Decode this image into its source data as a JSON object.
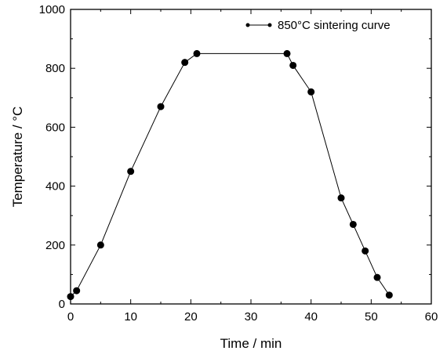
{
  "chart_data": {
    "type": "line",
    "xlabel": "Time / min",
    "ylabel": "Temperature / °C",
    "xlim": [
      0,
      60
    ],
    "ylim": [
      0,
      1000
    ],
    "xticks": [
      "0",
      "10",
      "20",
      "30",
      "40",
      "50",
      "60"
    ],
    "yticks": [
      "0",
      "200",
      "400",
      "600",
      "800",
      "1000"
    ],
    "grid": false,
    "legend_position": "top-right",
    "series": [
      {
        "name": "850°C sintering curve",
        "color": "#000000",
        "marker": "filled-circle",
        "x": [
          0,
          1,
          5,
          10,
          15,
          19,
          21,
          36,
          37,
          40,
          45,
          47,
          49,
          51,
          53
        ],
        "y": [
          25,
          45,
          200,
          450,
          670,
          820,
          850,
          850,
          810,
          720,
          360,
          270,
          180,
          90,
          30
        ]
      }
    ]
  }
}
